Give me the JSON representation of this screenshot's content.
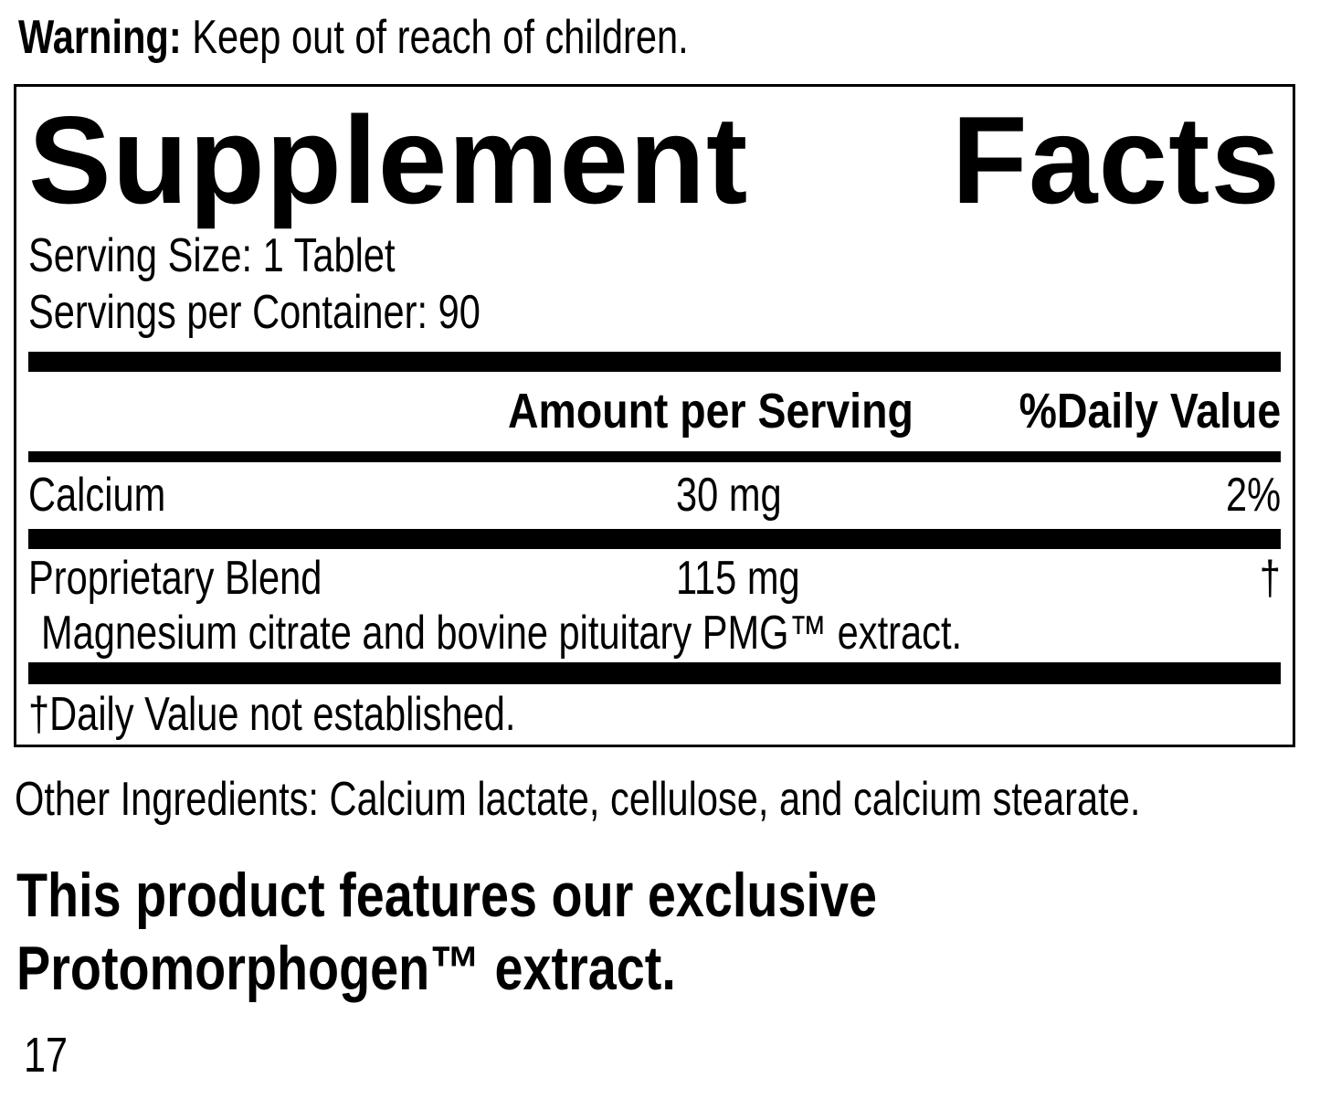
{
  "warning": {
    "label": "Warning:",
    "text": "Keep out of reach of children."
  },
  "panel": {
    "title_left": "Supplement",
    "title_right": "Facts",
    "serving_size": "Serving Size: 1 Tablet",
    "servings_per_container": "Servings per Container: 90",
    "columns": {
      "amount": "Amount per Serving",
      "daily_value": "%Daily Value"
    },
    "rows": [
      {
        "name": "Calcium",
        "amount": "30 mg",
        "daily_value": "2%"
      },
      {
        "name": "Proprietary Blend",
        "amount": "115 mg",
        "daily_value": "†",
        "description": "Magnesium citrate and bovine pituitary PMG™ extract."
      }
    ],
    "footnote": "†Daily Value not established."
  },
  "other_ingredients": "Other Ingredients: Calcium lactate, cellulose, and calcium stearate.",
  "feature_statement": {
    "line1": "This product features our exclusive",
    "line2": "Protomorphogen™ extract."
  },
  "page_number": "17",
  "colors": {
    "ink": "#000000",
    "background": "#ffffff"
  }
}
